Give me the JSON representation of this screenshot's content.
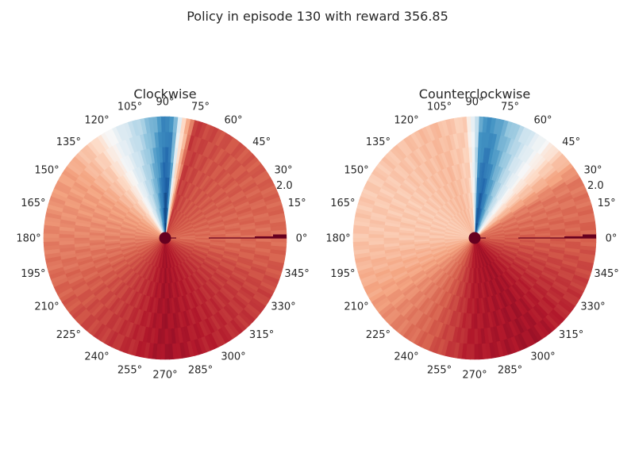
{
  "figure": {
    "title": "Policy in episode 130 with reward 356.85",
    "background": "#ffffff"
  },
  "chart_data": [
    {
      "type": "heatmap",
      "projection": "polar",
      "title": "Clockwise",
      "theta_ticks": [
        "0°",
        "15°",
        "30°",
        "45°",
        "60°",
        "75°",
        "90°",
        "105°",
        "120°",
        "135°",
        "150°",
        "165°",
        "180°",
        "195°",
        "210°",
        "225°",
        "240°",
        "255°",
        "270°",
        "285°",
        "300°",
        "315°",
        "330°",
        "345°"
      ],
      "r_tick": "2.0",
      "colormap": "RdBu_r",
      "grid": false,
      "angular_profile": [
        {
          "angle": 0,
          "value": 0.78
        },
        {
          "angle": 30,
          "value": 0.8
        },
        {
          "angle": 60,
          "value": 0.82
        },
        {
          "angle": 75,
          "value": 0.85
        },
        {
          "angle": 82,
          "value": 0.55
        },
        {
          "angle": 86,
          "value": 0.05
        },
        {
          "angle": 90,
          "value": 0.0
        },
        {
          "angle": 95,
          "value": 0.12
        },
        {
          "angle": 103,
          "value": 0.28
        },
        {
          "angle": 112,
          "value": 0.4
        },
        {
          "angle": 120,
          "value": 0.52
        },
        {
          "angle": 128,
          "value": 0.62
        },
        {
          "angle": 145,
          "value": 0.7
        },
        {
          "angle": 175,
          "value": 0.74
        },
        {
          "angle": 210,
          "value": 0.8
        },
        {
          "angle": 250,
          "value": 0.87
        },
        {
          "angle": 270,
          "value": 0.92
        },
        {
          "angle": 300,
          "value": 0.88
        },
        {
          "angle": 330,
          "value": 0.84
        },
        {
          "angle": 360,
          "value": 0.78
        }
      ]
    },
    {
      "type": "heatmap",
      "projection": "polar",
      "title": "Counterclockwise",
      "theta_ticks": [
        "0°",
        "15°",
        "30°",
        "45°",
        "60°",
        "75°",
        "90°",
        "105°",
        "120°",
        "135°",
        "150°",
        "165°",
        "180°",
        "195°",
        "210°",
        "225°",
        "240°",
        "255°",
        "270°",
        "285°",
        "300°",
        "315°",
        "330°",
        "345°"
      ],
      "r_tick": "2.0",
      "colormap": "RdBu_r",
      "grid": false,
      "angular_profile": [
        {
          "angle": 0,
          "value": 0.8
        },
        {
          "angle": 30,
          "value": 0.76
        },
        {
          "angle": 45,
          "value": 0.62
        },
        {
          "angle": 55,
          "value": 0.48
        },
        {
          "angle": 65,
          "value": 0.32
        },
        {
          "angle": 75,
          "value": 0.15
        },
        {
          "angle": 82,
          "value": 0.03
        },
        {
          "angle": 87,
          "value": 0.1
        },
        {
          "angle": 90,
          "value": 0.42
        },
        {
          "angle": 95,
          "value": 0.62
        },
        {
          "angle": 110,
          "value": 0.66
        },
        {
          "angle": 150,
          "value": 0.63
        },
        {
          "angle": 180,
          "value": 0.64
        },
        {
          "angle": 210,
          "value": 0.7
        },
        {
          "angle": 245,
          "value": 0.8
        },
        {
          "angle": 270,
          "value": 0.9
        },
        {
          "angle": 300,
          "value": 0.92
        },
        {
          "angle": 330,
          "value": 0.86
        },
        {
          "angle": 360,
          "value": 0.8
        }
      ]
    }
  ]
}
